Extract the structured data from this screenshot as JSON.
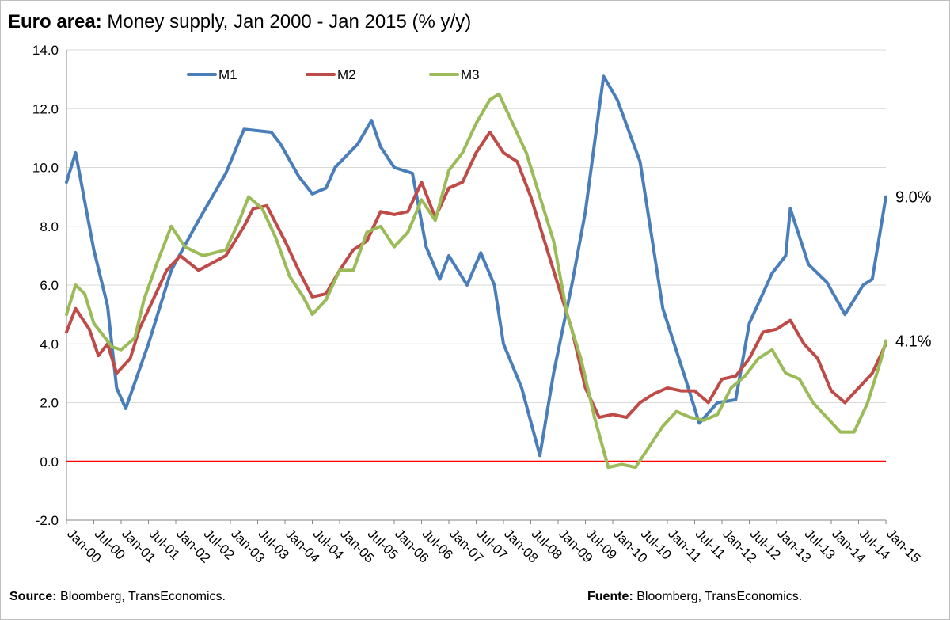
{
  "title": {
    "bold": "Euro area:",
    "rest": " Money supply, Jan 2000 - Jan 2015 (% y/y)"
  },
  "footer": {
    "source_label": "Source:",
    "source_text": " Bloomberg, TransEconomics.",
    "fuente_label": "Fuente:",
    "fuente_text": " Bloomberg, TransEconomics."
  },
  "chart_data": {
    "type": "line",
    "title": "Euro area: Money supply, Jan 2000 - Jan 2015 (% y/y)",
    "xlabel": "",
    "ylabel": "",
    "ylim": [
      -2,
      14
    ],
    "yticks": [
      -2,
      0,
      2,
      4,
      6,
      8,
      10,
      12,
      14
    ],
    "ytick_labels": [
      "-2.0",
      "0.0",
      "2.0",
      "4.0",
      "6.0",
      "8.0",
      "10.0",
      "12.0",
      "14.0"
    ],
    "x_tick_labels": [
      "Jan-00",
      "Jul-00",
      "Jan-01",
      "Jul-01",
      "Jan-02",
      "Jul-02",
      "Jan-03",
      "Jul-03",
      "Jan-04",
      "Jul-04",
      "Jan-05",
      "Jul-05",
      "Jan-06",
      "Jul-06",
      "Jan-07",
      "Jul-07",
      "Jan-08",
      "Jul-08",
      "Jan-09",
      "Jul-09",
      "Jan-10",
      "Jul-10",
      "Jan-11",
      "Jul-11",
      "Jan-12",
      "Jul-12",
      "Jan-13",
      "Jul-13",
      "Jan-14",
      "Jul-14",
      "Jan-15"
    ],
    "x_start": "Jan-00",
    "x_end": "Jan-15",
    "grid": "horizontal",
    "legend": "top-left",
    "reference_line": {
      "value": 0,
      "color": "#ff0000"
    },
    "end_labels": [
      {
        "series": "M1",
        "text": "9.0%"
      },
      {
        "series": "M3",
        "text": "4.1%"
      }
    ],
    "series": [
      {
        "name": "M1",
        "color": "#4a7ebb",
        "points": [
          [
            "Jan-00",
            9.5
          ],
          [
            "Mar-00",
            10.5
          ],
          [
            "Jul-00",
            7.2
          ],
          [
            "Oct-00",
            5.3
          ],
          [
            "Dec-00",
            2.5
          ],
          [
            "Feb-01",
            1.8
          ],
          [
            "Jul-01",
            4.0
          ],
          [
            "Dec-01",
            6.5
          ],
          [
            "Jun-02",
            8.2
          ],
          [
            "Dec-02",
            9.8
          ],
          [
            "Apr-03",
            11.3
          ],
          [
            "Oct-03",
            11.2
          ],
          [
            "Dec-03",
            10.8
          ],
          [
            "Apr-04",
            9.7
          ],
          [
            "Jul-04",
            9.1
          ],
          [
            "Oct-04",
            9.3
          ],
          [
            "Dec-04",
            10.0
          ],
          [
            "May-05",
            10.8
          ],
          [
            "Aug-05",
            11.6
          ],
          [
            "Oct-05",
            10.7
          ],
          [
            "Jan-06",
            10.0
          ],
          [
            "May-06",
            9.8
          ],
          [
            "Aug-06",
            7.3
          ],
          [
            "Nov-06",
            6.2
          ],
          [
            "Jan-07",
            7.0
          ],
          [
            "May-07",
            6.0
          ],
          [
            "Aug-07",
            7.1
          ],
          [
            "Nov-07",
            6.0
          ],
          [
            "Jan-08",
            4.0
          ],
          [
            "May-08",
            2.5
          ],
          [
            "Sep-08",
            0.2
          ],
          [
            "Dec-08",
            3.0
          ],
          [
            "Apr-09",
            6.0
          ],
          [
            "Jul-09",
            8.5
          ],
          [
            "Oct-09",
            12.0
          ],
          [
            "Nov-09",
            13.1
          ],
          [
            "Feb-10",
            12.3
          ],
          [
            "Jul-10",
            10.2
          ],
          [
            "Dec-10",
            5.2
          ],
          [
            "May-11",
            2.8
          ],
          [
            "Aug-11",
            1.3
          ],
          [
            "Dec-11",
            2.0
          ],
          [
            "Apr-12",
            2.1
          ],
          [
            "Jul-12",
            4.7
          ],
          [
            "Dec-12",
            6.4
          ],
          [
            "Mar-13",
            7.0
          ],
          [
            "Apr-13",
            8.6
          ],
          [
            "Aug-13",
            6.7
          ],
          [
            "Dec-13",
            6.1
          ],
          [
            "Apr-14",
            5.0
          ],
          [
            "Aug-14",
            6.0
          ],
          [
            "Oct-14",
            6.2
          ],
          [
            "Jan-15",
            9.0
          ]
        ]
      },
      {
        "name": "M2",
        "color": "#be4b48",
        "points": [
          [
            "Jan-00",
            4.4
          ],
          [
            "Mar-00",
            5.2
          ],
          [
            "Jun-00",
            4.5
          ],
          [
            "Aug-00",
            3.6
          ],
          [
            "Oct-00",
            4.0
          ],
          [
            "Dec-00",
            3.0
          ],
          [
            "Mar-01",
            3.5
          ],
          [
            "May-01",
            4.5
          ],
          [
            "Aug-01",
            5.5
          ],
          [
            "Nov-01",
            6.5
          ],
          [
            "Feb-02",
            7.0
          ],
          [
            "Jun-02",
            6.5
          ],
          [
            "Dec-02",
            7.0
          ],
          [
            "Apr-03",
            8.0
          ],
          [
            "Jun-03",
            8.6
          ],
          [
            "Sep-03",
            8.7
          ],
          [
            "Jan-04",
            7.5
          ],
          [
            "Apr-04",
            6.5
          ],
          [
            "Jul-04",
            5.6
          ],
          [
            "Oct-04",
            5.7
          ],
          [
            "Jan-05",
            6.5
          ],
          [
            "Apr-05",
            7.2
          ],
          [
            "Jul-05",
            7.5
          ],
          [
            "Oct-05",
            8.5
          ],
          [
            "Jan-06",
            8.4
          ],
          [
            "Apr-06",
            8.5
          ],
          [
            "Jul-06",
            9.5
          ],
          [
            "Oct-06",
            8.3
          ],
          [
            "Jan-07",
            9.3
          ],
          [
            "Apr-07",
            9.5
          ],
          [
            "Jul-07",
            10.5
          ],
          [
            "Oct-07",
            11.2
          ],
          [
            "Jan-08",
            10.5
          ],
          [
            "Apr-08",
            10.2
          ],
          [
            "Jul-08",
            9.0
          ],
          [
            "Oct-08",
            7.5
          ],
          [
            "Jan-09",
            6.0
          ],
          [
            "Apr-09",
            4.5
          ],
          [
            "Jul-09",
            2.5
          ],
          [
            "Oct-09",
            1.5
          ],
          [
            "Jan-10",
            1.6
          ],
          [
            "Apr-10",
            1.5
          ],
          [
            "Jul-10",
            2.0
          ],
          [
            "Oct-10",
            2.3
          ],
          [
            "Jan-11",
            2.5
          ],
          [
            "Apr-11",
            2.4
          ],
          [
            "Jul-11",
            2.4
          ],
          [
            "Oct-11",
            2.0
          ],
          [
            "Jan-12",
            2.8
          ],
          [
            "Apr-12",
            2.9
          ],
          [
            "Jul-12",
            3.5
          ],
          [
            "Oct-12",
            4.4
          ],
          [
            "Jan-13",
            4.5
          ],
          [
            "Apr-13",
            4.8
          ],
          [
            "Jul-13",
            4.0
          ],
          [
            "Oct-13",
            3.5
          ],
          [
            "Jan-14",
            2.4
          ],
          [
            "Apr-14",
            2.0
          ],
          [
            "Jul-14",
            2.5
          ],
          [
            "Oct-14",
            3.0
          ],
          [
            "Jan-15",
            4.0
          ]
        ]
      },
      {
        "name": "M3",
        "color": "#9bbb59",
        "points": [
          [
            "Jan-00",
            5.0
          ],
          [
            "Mar-00",
            6.0
          ],
          [
            "May-00",
            5.7
          ],
          [
            "Jul-00",
            4.7
          ],
          [
            "Sep-00",
            4.3
          ],
          [
            "Nov-00",
            3.9
          ],
          [
            "Jan-01",
            3.8
          ],
          [
            "Apr-01",
            4.2
          ],
          [
            "Jun-01",
            5.5
          ],
          [
            "Sep-01",
            6.8
          ],
          [
            "Dec-01",
            8.0
          ],
          [
            "Mar-02",
            7.3
          ],
          [
            "Jul-02",
            7.0
          ],
          [
            "Dec-02",
            7.2
          ],
          [
            "Mar-03",
            8.2
          ],
          [
            "May-03",
            9.0
          ],
          [
            "Aug-03",
            8.6
          ],
          [
            "Nov-03",
            7.6
          ],
          [
            "Feb-04",
            6.3
          ],
          [
            "May-04",
            5.6
          ],
          [
            "Jul-04",
            5.0
          ],
          [
            "Oct-04",
            5.5
          ],
          [
            "Jan-05",
            6.5
          ],
          [
            "Apr-05",
            6.5
          ],
          [
            "Jul-05",
            7.8
          ],
          [
            "Oct-05",
            8.0
          ],
          [
            "Jan-06",
            7.3
          ],
          [
            "Apr-06",
            7.8
          ],
          [
            "Jul-06",
            8.9
          ],
          [
            "Oct-06",
            8.2
          ],
          [
            "Jan-07",
            9.9
          ],
          [
            "Apr-07",
            10.5
          ],
          [
            "Jul-07",
            11.5
          ],
          [
            "Oct-07",
            12.3
          ],
          [
            "Dec-07",
            12.5
          ],
          [
            "Mar-08",
            11.5
          ],
          [
            "Jun-08",
            10.5
          ],
          [
            "Sep-08",
            9.0
          ],
          [
            "Dec-08",
            7.5
          ],
          [
            "Mar-09",
            5.0
          ],
          [
            "Jun-09",
            3.5
          ],
          [
            "Sep-09",
            1.5
          ],
          [
            "Dec-09",
            -0.2
          ],
          [
            "Mar-10",
            -0.1
          ],
          [
            "Jun-10",
            -0.2
          ],
          [
            "Sep-10",
            0.5
          ],
          [
            "Dec-10",
            1.2
          ],
          [
            "Mar-11",
            1.7
          ],
          [
            "Jun-11",
            1.5
          ],
          [
            "Sep-11",
            1.4
          ],
          [
            "Dec-11",
            1.6
          ],
          [
            "Mar-12",
            2.5
          ],
          [
            "Jun-12",
            2.9
          ],
          [
            "Sep-12",
            3.5
          ],
          [
            "Dec-12",
            3.8
          ],
          [
            "Mar-13",
            3.0
          ],
          [
            "Jun-13",
            2.8
          ],
          [
            "Sep-13",
            2.0
          ],
          [
            "Dec-13",
            1.5
          ],
          [
            "Mar-14",
            1.0
          ],
          [
            "Jun-14",
            1.0
          ],
          [
            "Sep-14",
            2.0
          ],
          [
            "Dec-14",
            3.5
          ],
          [
            "Jan-15",
            4.1
          ]
        ]
      }
    ]
  }
}
